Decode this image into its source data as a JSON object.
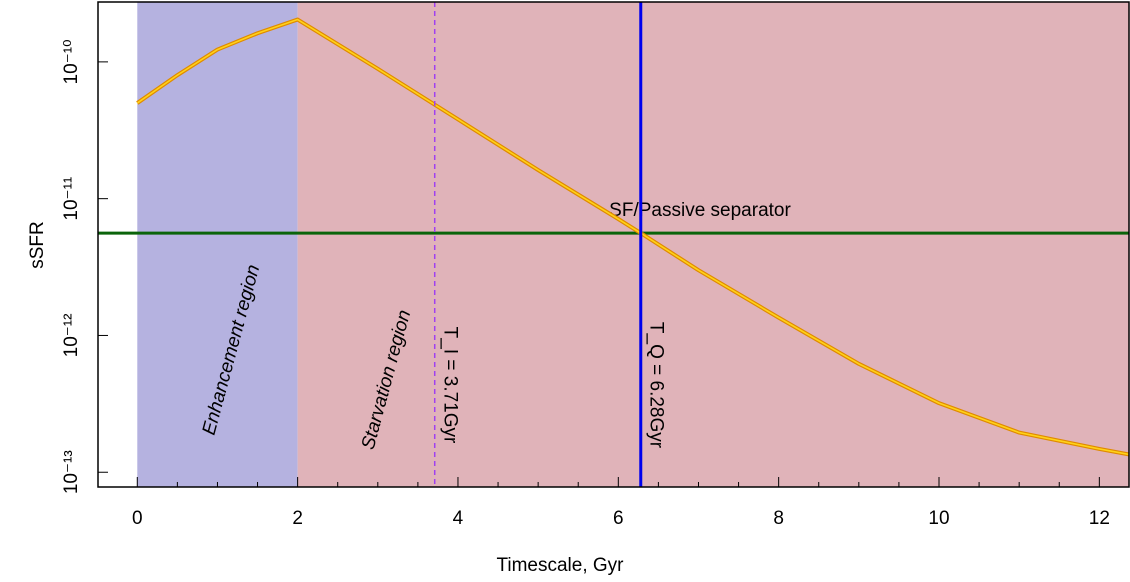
{
  "chart_data": {
    "type": "line",
    "x_label": "Timescale, Gyr",
    "y_label": "sSFR",
    "x": [
      0,
      0.5,
      1,
      1.5,
      2,
      3,
      4,
      5,
      6,
      6.28,
      7,
      8,
      9,
      10,
      11,
      12,
      12.37
    ],
    "series": [
      {
        "color": "#ffd21a",
        "edge_color": "#e08a00",
        "values": [
          5e-11,
          8e-11,
          1.23e-10,
          1.62e-10,
          2.04e-10,
          8.9e-11,
          3.8e-11,
          1.62e-11,
          7.1e-12,
          5.6e-12,
          3e-12,
          1.35e-12,
          6.2e-13,
          3.2e-13,
          1.95e-13,
          1.48e-13,
          1.35e-13
        ]
      }
    ],
    "xlim": [
      -0.49,
      12.37
    ],
    "xticks": [
      0,
      2,
      4,
      6,
      8,
      10,
      12
    ],
    "xminorticks": [
      0.5,
      1,
      1.5,
      2.5,
      3,
      3.5,
      4.5,
      5,
      5.5,
      6.5,
      7,
      7.5,
      8.5,
      9,
      9.5,
      10.5,
      11,
      11.5
    ],
    "ylim": [
      7.8e-14,
      2.74e-10
    ],
    "log_y": true,
    "yticks": [
      {
        "value": 1e-13,
        "label": "10⁻¹³"
      },
      {
        "value": 1e-12,
        "label": "10⁻¹²"
      },
      {
        "value": 1e-11,
        "label": "10⁻¹¹"
      },
      {
        "value": 1e-10,
        "label": "10⁻¹⁰"
      }
    ],
    "regions": [
      {
        "label": "Enhancement region",
        "from": 0,
        "to": 2,
        "color": "#b5b2e0",
        "text_color": "#00008b"
      },
      {
        "label": "Starvation region",
        "from": 2,
        "color": "#e0b3b9",
        "text_color": "#ff0000"
      }
    ],
    "vlines": [
      {
        "x": 3.71,
        "label": "T_I = 3.71Gyr",
        "color": "#a040f0",
        "dashed": true
      },
      {
        "x": 6.28,
        "label": "T_Q = 6.28Gyr",
        "color": "#0000ee",
        "dashed": false
      }
    ],
    "hlines": [
      {
        "y": 5.6e-12,
        "label": "SF/Passive separator",
        "color": "#0a640a"
      }
    ]
  }
}
